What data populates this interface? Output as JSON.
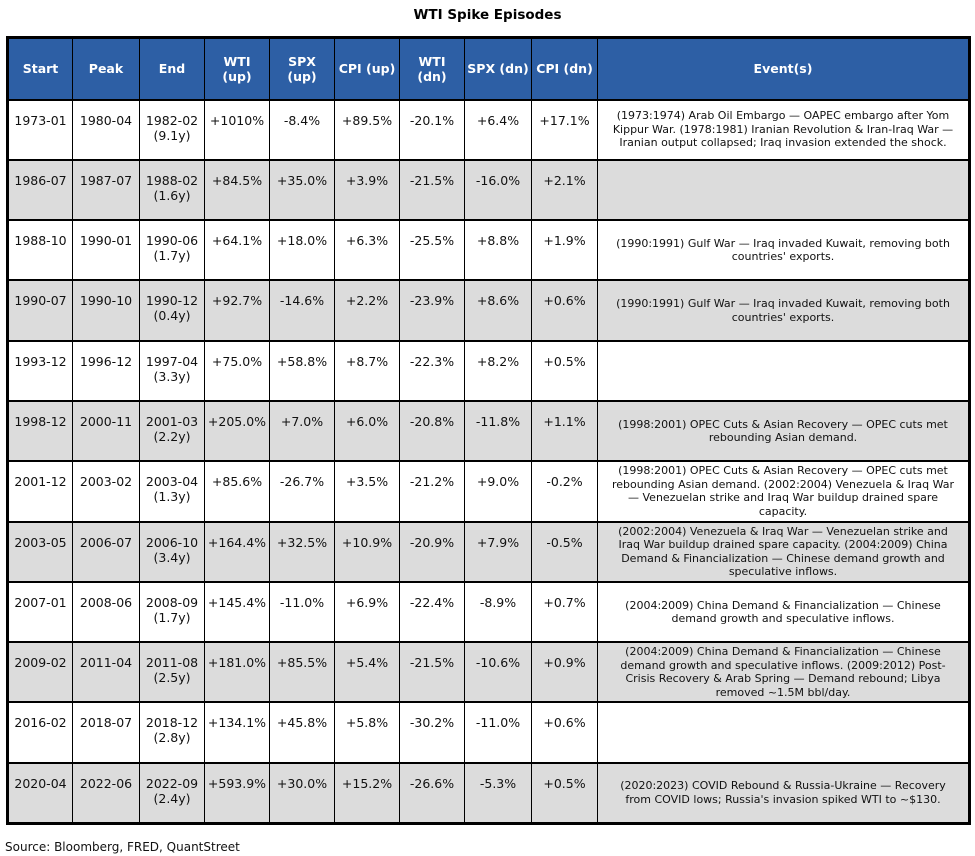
{
  "colors": {
    "header_bg": "#2D5FA5",
    "header_text": "#FFFFFF",
    "row_bg": "#FFFFFF",
    "row_alt_bg": "#DCDCDC",
    "border": "#000000"
  },
  "source_note": "Source: Bloomberg, FRED, QuantStreet",
  "chart_data": {
    "type": "table",
    "title": "WTI Spike Episodes",
    "columns": [
      {
        "key": "start",
        "label": "Start"
      },
      {
        "key": "peak",
        "label": "Peak"
      },
      {
        "key": "end",
        "label": "End"
      },
      {
        "key": "wti_up",
        "label": "WTI (up)"
      },
      {
        "key": "spx_up",
        "label": "SPX (up)"
      },
      {
        "key": "cpi_up",
        "label": "CPI (up)"
      },
      {
        "key": "wti_dn",
        "label": "WTI (dn)"
      },
      {
        "key": "spx_dn",
        "label": "SPX (dn)"
      },
      {
        "key": "cpi_dn",
        "label": "CPI (dn)"
      },
      {
        "key": "events",
        "label": "Event(s)"
      }
    ],
    "rows": [
      {
        "start": "1973-01",
        "peak": "1980-04",
        "end": "1982-02",
        "duration": "(9.1y)",
        "wti_up": "+1010%",
        "spx_up": "-8.4%",
        "cpi_up": "+89.5%",
        "wti_dn": "-20.1%",
        "spx_dn": "+6.4%",
        "cpi_dn": "+17.1%",
        "events": "(1973:1974) Arab Oil Embargo — OAPEC embargo after Yom Kippur War. (1978:1981) Iranian Revolution & Iran-Iraq War — Iranian output collapsed; Iraq invasion extended the shock."
      },
      {
        "start": "1986-07",
        "peak": "1987-07",
        "end": "1988-02",
        "duration": "(1.6y)",
        "wti_up": "+84.5%",
        "spx_up": "+35.0%",
        "cpi_up": "+3.9%",
        "wti_dn": "-21.5%",
        "spx_dn": "-16.0%",
        "cpi_dn": "+2.1%",
        "events": ""
      },
      {
        "start": "1988-10",
        "peak": "1990-01",
        "end": "1990-06",
        "duration": "(1.7y)",
        "wti_up": "+64.1%",
        "spx_up": "+18.0%",
        "cpi_up": "+6.3%",
        "wti_dn": "-25.5%",
        "spx_dn": "+8.8%",
        "cpi_dn": "+1.9%",
        "events": "(1990:1991) Gulf War — Iraq invaded Kuwait, removing both countries' exports."
      },
      {
        "start": "1990-07",
        "peak": "1990-10",
        "end": "1990-12",
        "duration": "(0.4y)",
        "wti_up": "+92.7%",
        "spx_up": "-14.6%",
        "cpi_up": "+2.2%",
        "wti_dn": "-23.9%",
        "spx_dn": "+8.6%",
        "cpi_dn": "+0.6%",
        "events": "(1990:1991) Gulf War — Iraq invaded Kuwait, removing both countries' exports."
      },
      {
        "start": "1993-12",
        "peak": "1996-12",
        "end": "1997-04",
        "duration": "(3.3y)",
        "wti_up": "+75.0%",
        "spx_up": "+58.8%",
        "cpi_up": "+8.7%",
        "wti_dn": "-22.3%",
        "spx_dn": "+8.2%",
        "cpi_dn": "+0.5%",
        "events": ""
      },
      {
        "start": "1998-12",
        "peak": "2000-11",
        "end": "2001-03",
        "duration": "(2.2y)",
        "wti_up": "+205.0%",
        "spx_up": "+7.0%",
        "cpi_up": "+6.0%",
        "wti_dn": "-20.8%",
        "spx_dn": "-11.8%",
        "cpi_dn": "+1.1%",
        "events": "(1998:2001) OPEC Cuts & Asian Recovery — OPEC cuts met rebounding Asian demand."
      },
      {
        "start": "2001-12",
        "peak": "2003-02",
        "end": "2003-04",
        "duration": "(1.3y)",
        "wti_up": "+85.6%",
        "spx_up": "-26.7%",
        "cpi_up": "+3.5%",
        "wti_dn": "-21.2%",
        "spx_dn": "+9.0%",
        "cpi_dn": "-0.2%",
        "events": "(1998:2001) OPEC Cuts & Asian Recovery — OPEC cuts met rebounding Asian demand. (2002:2004) Venezuela & Iraq War — Venezuelan strike and Iraq War buildup drained spare capacity."
      },
      {
        "start": "2003-05",
        "peak": "2006-07",
        "end": "2006-10",
        "duration": "(3.4y)",
        "wti_up": "+164.4%",
        "spx_up": "+32.5%",
        "cpi_up": "+10.9%",
        "wti_dn": "-20.9%",
        "spx_dn": "+7.9%",
        "cpi_dn": "-0.5%",
        "events": "(2002:2004) Venezuela & Iraq War — Venezuelan strike and Iraq War buildup drained spare capacity. (2004:2009) China Demand & Financialization — Chinese demand growth and speculative inflows."
      },
      {
        "start": "2007-01",
        "peak": "2008-06",
        "end": "2008-09",
        "duration": "(1.7y)",
        "wti_up": "+145.4%",
        "spx_up": "-11.0%",
        "cpi_up": "+6.9%",
        "wti_dn": "-22.4%",
        "spx_dn": "-8.9%",
        "cpi_dn": "+0.7%",
        "events": "(2004:2009) China Demand & Financialization — Chinese demand growth and speculative inflows."
      },
      {
        "start": "2009-02",
        "peak": "2011-04",
        "end": "2011-08",
        "duration": "(2.5y)",
        "wti_up": "+181.0%",
        "spx_up": "+85.5%",
        "cpi_up": "+5.4%",
        "wti_dn": "-21.5%",
        "spx_dn": "-10.6%",
        "cpi_dn": "+0.9%",
        "events": "(2004:2009) China Demand & Financialization — Chinese demand growth and speculative inflows. (2009:2012) Post-Crisis Recovery & Arab Spring — Demand rebound; Libya removed ~1.5M bbl/day."
      },
      {
        "start": "2016-02",
        "peak": "2018-07",
        "end": "2018-12",
        "duration": "(2.8y)",
        "wti_up": "+134.1%",
        "spx_up": "+45.8%",
        "cpi_up": "+5.8%",
        "wti_dn": "-30.2%",
        "spx_dn": "-11.0%",
        "cpi_dn": "+0.6%",
        "events": ""
      },
      {
        "start": "2020-04",
        "peak": "2022-06",
        "end": "2022-09",
        "duration": "(2.4y)",
        "wti_up": "+593.9%",
        "spx_up": "+30.0%",
        "cpi_up": "+15.2%",
        "wti_dn": "-26.6%",
        "spx_dn": "-5.3%",
        "cpi_dn": "+0.5%",
        "events": "(2020:2023) COVID Rebound & Russia-Ukraine — Recovery from COVID lows; Russia's invasion spiked WTI to ~$130."
      }
    ]
  }
}
